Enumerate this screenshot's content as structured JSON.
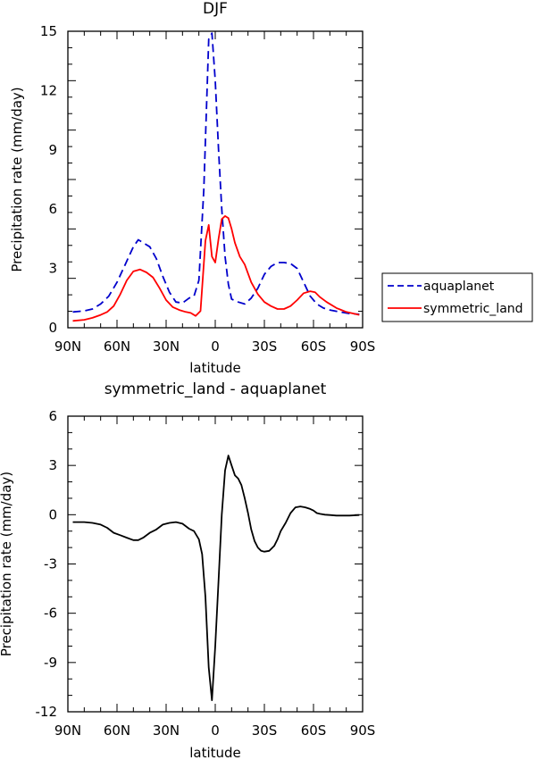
{
  "chart_data": [
    {
      "type": "line",
      "title": "DJF",
      "xlabel": "latitude",
      "ylabel": "Precipitation rate (mm/day)",
      "xlim": [
        -90,
        90
      ],
      "ylim": [
        0,
        15
      ],
      "x_ticks": [
        -90,
        -60,
        -30,
        0,
        30,
        60,
        90
      ],
      "x_tick_labels": [
        "90N",
        "60N",
        "30N",
        "0",
        "30S",
        "60S",
        "90S"
      ],
      "y_ticks": [
        0,
        3,
        6,
        9,
        12,
        15
      ],
      "y_tick_labels": [
        "0",
        "3",
        "6",
        "9",
        "12",
        "15"
      ],
      "legend_position": "right",
      "series": [
        {
          "name": "aquaplanet",
          "color": "#0000cc",
          "dash": "dashed",
          "x": [
            -87,
            -80,
            -75,
            -70,
            -65,
            -60,
            -55,
            -50,
            -47,
            -44,
            -40,
            -36,
            -32,
            -28,
            -24,
            -20,
            -16,
            -13,
            -10,
            -7,
            -4,
            -2,
            0,
            2,
            4,
            6,
            8,
            10,
            14,
            18,
            22,
            26,
            30,
            34,
            38,
            42,
            46,
            50,
            54,
            58,
            62,
            66,
            70,
            76,
            82,
            88
          ],
          "y": [
            0.8,
            0.85,
            0.95,
            1.2,
            1.6,
            2.3,
            3.2,
            4.1,
            4.45,
            4.3,
            4.1,
            3.5,
            2.6,
            1.8,
            1.3,
            1.25,
            1.5,
            1.6,
            2.4,
            7.0,
            14.6,
            14.9,
            12.5,
            9.0,
            6.0,
            3.6,
            2.2,
            1.45,
            1.3,
            1.2,
            1.5,
            2.0,
            2.7,
            3.1,
            3.3,
            3.3,
            3.25,
            3.0,
            2.3,
            1.6,
            1.2,
            1.0,
            0.9,
            0.8,
            0.72,
            0.68
          ]
        },
        {
          "name": "symmetric_land",
          "color": "#ff0000",
          "dash": "solid",
          "x": [
            -87,
            -80,
            -75,
            -70,
            -66,
            -62,
            -58,
            -54,
            -50,
            -46,
            -42,
            -38,
            -34,
            -30,
            -26,
            -22,
            -18,
            -15,
            -12,
            -9,
            -6,
            -4,
            -2,
            0,
            2,
            4,
            6,
            8,
            10,
            12,
            15,
            18,
            22,
            26,
            30,
            34,
            38,
            42,
            46,
            50,
            54,
            58,
            61,
            64,
            68,
            74,
            80,
            88
          ],
          "y": [
            0.35,
            0.4,
            0.5,
            0.65,
            0.8,
            1.1,
            1.7,
            2.4,
            2.85,
            2.95,
            2.8,
            2.55,
            2.0,
            1.4,
            1.05,
            0.9,
            0.8,
            0.75,
            0.6,
            0.85,
            4.4,
            5.2,
            3.6,
            3.3,
            4.5,
            5.5,
            5.65,
            5.55,
            5.0,
            4.3,
            3.6,
            3.2,
            2.3,
            1.7,
            1.3,
            1.1,
            0.95,
            0.95,
            1.1,
            1.4,
            1.75,
            1.85,
            1.8,
            1.55,
            1.3,
            1.0,
            0.8,
            0.65
          ]
        }
      ]
    },
    {
      "type": "line",
      "title": "symmetric_land - aquaplanet",
      "xlabel": "latitude",
      "ylabel": "Precipitation rate (mm/day)",
      "xlim": [
        -90,
        90
      ],
      "ylim": [
        -12,
        6
      ],
      "x_ticks": [
        -90,
        -60,
        -30,
        0,
        30,
        60,
        90
      ],
      "x_tick_labels": [
        "90N",
        "60N",
        "30N",
        "0",
        "30S",
        "60S",
        "90S"
      ],
      "y_ticks": [
        -12,
        -9,
        -6,
        -3,
        0,
        3,
        6
      ],
      "y_tick_labels": [
        "-12",
        "-9",
        "-6",
        "-3",
        "0",
        "3",
        "6"
      ],
      "series": [
        {
          "color": "#000000",
          "dash": "solid",
          "x": [
            -87,
            -80,
            -75,
            -70,
            -66,
            -62,
            -58,
            -54,
            -50,
            -47,
            -44,
            -40,
            -36,
            -32,
            -28,
            -24,
            -20,
            -16,
            -13,
            -10,
            -8,
            -6,
            -4,
            -2,
            0,
            2,
            4,
            6,
            8,
            10,
            12,
            14,
            16,
            18,
            20,
            22,
            24,
            26,
            28,
            30,
            33,
            36,
            38,
            40,
            43,
            46,
            49,
            52,
            55,
            58,
            60,
            62,
            64,
            67,
            70,
            74,
            78,
            82,
            88
          ],
          "y": [
            -0.45,
            -0.45,
            -0.5,
            -0.6,
            -0.8,
            -1.1,
            -1.25,
            -1.4,
            -1.55,
            -1.55,
            -1.4,
            -1.1,
            -0.9,
            -0.6,
            -0.5,
            -0.45,
            -0.55,
            -0.85,
            -1.0,
            -1.5,
            -2.4,
            -5.0,
            -9.3,
            -11.3,
            -8.0,
            -4.0,
            0.0,
            2.7,
            3.6,
            3.0,
            2.4,
            2.2,
            1.8,
            1.0,
            0.1,
            -0.9,
            -1.6,
            -2.0,
            -2.2,
            -2.25,
            -2.2,
            -1.9,
            -1.5,
            -1.0,
            -0.5,
            0.1,
            0.45,
            0.5,
            0.45,
            0.35,
            0.25,
            0.1,
            0.05,
            0.0,
            -0.02,
            -0.05,
            -0.05,
            -0.05,
            -0.02
          ]
        }
      ]
    }
  ]
}
